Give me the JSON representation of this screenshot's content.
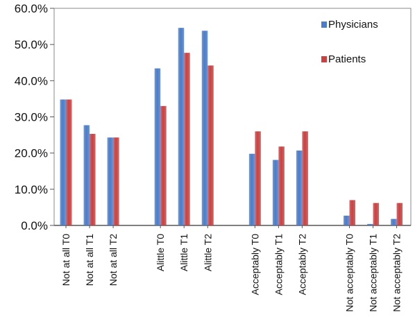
{
  "chart_data": {
    "type": "bar",
    "title": "",
    "xlabel": "",
    "ylabel": "",
    "ylim": [
      0,
      60
    ],
    "ytick_values": [
      0,
      10,
      20,
      30,
      40,
      50,
      60
    ],
    "yticks": [
      "0.0%",
      "10.0%",
      "20.0%",
      "30.0%",
      "40.0%",
      "50.0%",
      "60.0%"
    ],
    "grid": false,
    "legend_position": "top-right",
    "categories": [
      "Not at all T0",
      "Not at all T1",
      "Not at all T2",
      "",
      "Alittle T0",
      "Alittle T1",
      "Alittle T2",
      "",
      "Acceptably T0",
      "Acceptably T1",
      "Acceptably T2",
      "",
      "Not acceptably T0",
      "Not acceptably T1",
      "Not acceptably T2"
    ],
    "series": [
      {
        "name": "Physicians",
        "color": "#4a7cc9",
        "values": [
          34.8,
          27.7,
          24.3,
          null,
          43.4,
          54.6,
          53.8,
          null,
          19.8,
          18.1,
          20.7,
          null,
          2.7,
          0.4,
          1.8
        ]
      },
      {
        "name": "Patients",
        "color": "#c94141",
        "values": [
          34.8,
          25.3,
          24.3,
          null,
          33.0,
          47.7,
          44.2,
          null,
          26.0,
          21.8,
          26.0,
          null,
          7.0,
          6.2,
          6.2
        ]
      }
    ]
  }
}
